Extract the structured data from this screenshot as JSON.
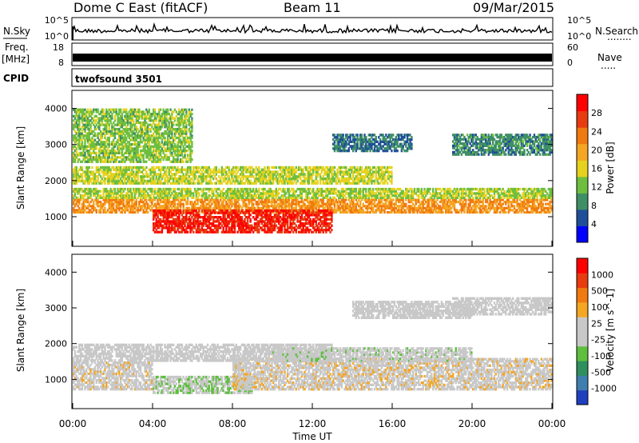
{
  "header": {
    "station": "Dome C East (fitACF)",
    "beam": "Beam 11",
    "date": "09/Mar/2015"
  },
  "left_labels": {
    "nsky": "N.Sky",
    "freq_top": "Freq.",
    "freq_unit": "[MHz]",
    "cpid": "CPID"
  },
  "right_labels": {
    "nsearch": "N.Search",
    "nsearch_dots": "........",
    "nave": "Nave",
    "nave_dots": "....."
  },
  "cpid_text": "twofsound 3501",
  "strip_ticks": {
    "noise_left": [
      "10^5",
      "10^0"
    ],
    "noise_right": [
      "10^5",
      "10^0"
    ],
    "freq_left": [
      "18",
      "8"
    ],
    "freq_right": [
      "60",
      "0"
    ]
  },
  "colors": {
    "power_scale": [
      "#0000ff",
      "#1f4e9b",
      "#3f8f66",
      "#6fbf3f",
      "#e6d21e",
      "#f5a623",
      "#f07a10",
      "#e83b10",
      "#ff0000"
    ],
    "velocity_scale": [
      "#1f3fbf",
      "#3f7fb0",
      "#2f8f5f",
      "#5fbf3f",
      "#c8c8c8",
      "#c8c8c8",
      "#f5a623",
      "#f07a10",
      "#e83b10",
      "#ff0000"
    ]
  },
  "chart_data": [
    {
      "type": "heatmap",
      "name": "power",
      "ylabel": "Slant Range [km]",
      "yticks": [
        "4000",
        "3000",
        "2000",
        "1000"
      ],
      "ylim": [
        180,
        4500
      ],
      "xlim_hours": [
        0,
        24
      ],
      "colorbar_label": "Power [dB]",
      "colorbar_ticks": [
        "28",
        "24",
        "20",
        "16",
        "12",
        "8",
        "4"
      ],
      "colorbar_range": [
        0,
        30
      ],
      "bands": [
        {
          "t": [
            0,
            24
          ],
          "range": [
            1100,
            1500
          ],
          "value": 20
        },
        {
          "t": [
            4,
            13
          ],
          "range": [
            550,
            1200
          ],
          "value": 27
        },
        {
          "t": [
            0,
            24
          ],
          "range": [
            1500,
            1800
          ],
          "value": 13
        },
        {
          "t": [
            0,
            16
          ],
          "range": [
            1900,
            2400
          ],
          "value": 14
        },
        {
          "t": [
            0,
            6
          ],
          "range": [
            2500,
            4000
          ],
          "value": 12
        },
        {
          "t": [
            13,
            17
          ],
          "range": [
            2800,
            3300
          ],
          "value": 7
        },
        {
          "t": [
            19,
            24
          ],
          "range": [
            2700,
            3300
          ],
          "value": 8
        }
      ]
    },
    {
      "type": "heatmap",
      "name": "velocity",
      "ylabel": "Slant Range [km]",
      "yticks": [
        "4000",
        "3000",
        "2000",
        "1000"
      ],
      "ylim": [
        180,
        4500
      ],
      "xlim_hours": [
        0,
        24
      ],
      "xticks": [
        "00:00",
        "04:00",
        "08:00",
        "12:00",
        "16:00",
        "20:00",
        "00:00"
      ],
      "xlabel": "Time UT",
      "colorbar_label": "Velocity [m s^-1]",
      "colorbar_ticks": [
        "1000",
        "500",
        "100",
        "25",
        "-25",
        "-100",
        "-500",
        "-1000"
      ],
      "colorbar_range": [
        -1000,
        1000
      ],
      "bands": [
        {
          "t": [
            0,
            4
          ],
          "range": [
            700,
            1500
          ],
          "value": 60
        },
        {
          "t": [
            4,
            9
          ],
          "range": [
            600,
            1100
          ],
          "value": -150
        },
        {
          "t": [
            8,
            24
          ],
          "range": [
            700,
            1600
          ],
          "value": 90
        },
        {
          "t": [
            0,
            13
          ],
          "range": [
            1500,
            2000
          ],
          "value": 0
        },
        {
          "t": [
            10,
            20
          ],
          "range": [
            1500,
            1900
          ],
          "value": -60
        },
        {
          "t": [
            14,
            20
          ],
          "range": [
            2700,
            3200
          ],
          "value": 10
        },
        {
          "t": [
            19,
            24
          ],
          "range": [
            2800,
            3300
          ],
          "value": 5
        }
      ]
    }
  ]
}
